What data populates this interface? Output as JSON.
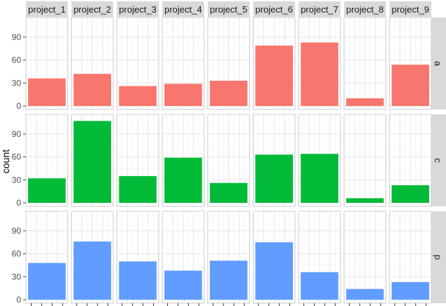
{
  "chart_data": {
    "type": "bar",
    "ylabel": "count",
    "xlabel": "",
    "ylim": [
      0,
      111
    ],
    "yticks": [
      0,
      30,
      60,
      90
    ],
    "grid": true,
    "facet_columns": [
      "project_1",
      "project_2",
      "project_3",
      "project_4",
      "project_5",
      "project_6",
      "project_7",
      "project_8",
      "project_9"
    ],
    "facet_rows": [
      "a",
      "c",
      "p"
    ],
    "row_colors": {
      "a": "#F8766D",
      "c": "#00BA38",
      "p": "#619CFF"
    },
    "values": {
      "a": [
        36,
        42,
        26,
        29,
        33,
        79,
        83,
        10,
        54
      ],
      "c": [
        32,
        107,
        35,
        59,
        26,
        63,
        64,
        6,
        23
      ],
      "p": [
        48,
        76,
        50,
        38,
        51,
        75,
        36,
        14,
        23
      ]
    }
  }
}
